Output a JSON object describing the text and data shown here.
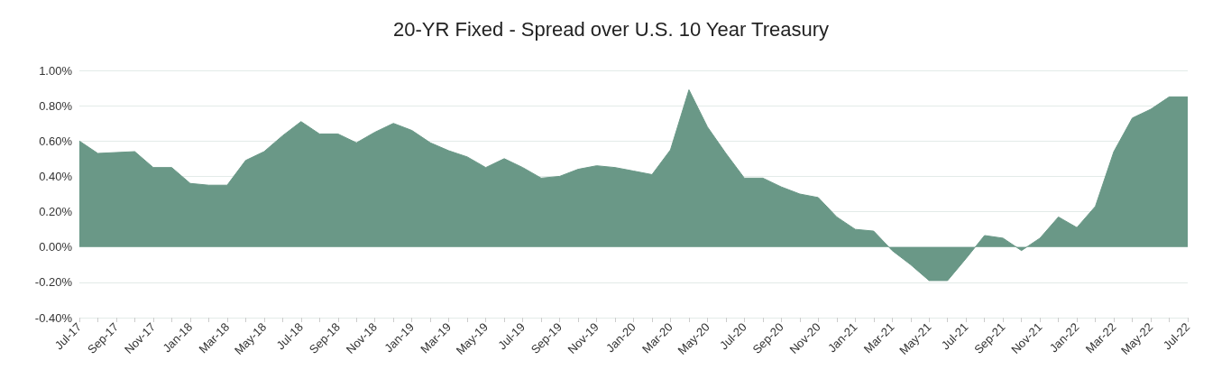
{
  "chart_data": {
    "type": "area",
    "title": "20-YR Fixed - Spread over U.S. 10 Year Treasury",
    "categories": [
      "Jul-17",
      null,
      "Sep-17",
      null,
      "Nov-17",
      null,
      "Jan-18",
      null,
      "Mar-18",
      null,
      "May-18",
      null,
      "Jul-18",
      null,
      "Sep-18",
      null,
      "Nov-18",
      null,
      "Jan-19",
      null,
      "Mar-19",
      null,
      "May-19",
      null,
      "Jul-19",
      null,
      "Sep-19",
      null,
      "Nov-19",
      null,
      "Jan-20",
      null,
      "Mar-20",
      null,
      "May-20",
      null,
      "Jul-20",
      null,
      "Sep-20",
      null,
      "Nov-20",
      null,
      "Jan-21",
      null,
      "Mar-21",
      null,
      "May-21",
      null,
      "Jul-21",
      null,
      "Sep-21",
      null,
      "Nov-21",
      null,
      "Jan-22",
      null,
      "Mar-22",
      null,
      "May-22",
      null,
      "Jul-22"
    ],
    "series": [
      {
        "color": "#6a9887",
        "values": [
          0.6,
          0.53,
          0.535,
          0.54,
          0.45,
          0.45,
          0.36,
          0.35,
          0.35,
          0.49,
          0.54,
          0.63,
          0.71,
          0.64,
          0.64,
          0.59,
          0.65,
          0.7,
          0.66,
          0.59,
          0.545,
          0.51,
          0.45,
          0.5,
          0.45,
          0.39,
          0.4,
          0.44,
          0.46,
          0.45,
          0.43,
          0.41,
          0.55,
          0.89,
          0.68,
          0.53,
          0.39,
          0.39,
          0.34,
          0.3,
          0.28,
          0.17,
          0.1,
          0.09,
          -0.02,
          -0.1,
          -0.19,
          -0.19,
          -0.065,
          0.065,
          0.05,
          -0.02,
          0.05,
          0.17,
          0.11,
          0.23,
          0.54,
          0.73,
          0.78,
          0.85,
          0.85
        ]
      }
    ],
    "ylim": [
      -0.4,
      1.0
    ],
    "yticks": [
      {
        "value": -0.4,
        "label": "-0.40%"
      },
      {
        "value": -0.2,
        "label": "-0.20%"
      },
      {
        "value": 0,
        "label": "0.00%"
      },
      {
        "value": 0.2,
        "label": "0.20%"
      },
      {
        "value": 0.4,
        "label": "0.40%"
      },
      {
        "value": 0.6,
        "label": "0.60%"
      },
      {
        "value": 0.8,
        "label": "0.80%"
      },
      {
        "value": 1.0,
        "label": "1.00%"
      }
    ],
    "grid": "y"
  }
}
